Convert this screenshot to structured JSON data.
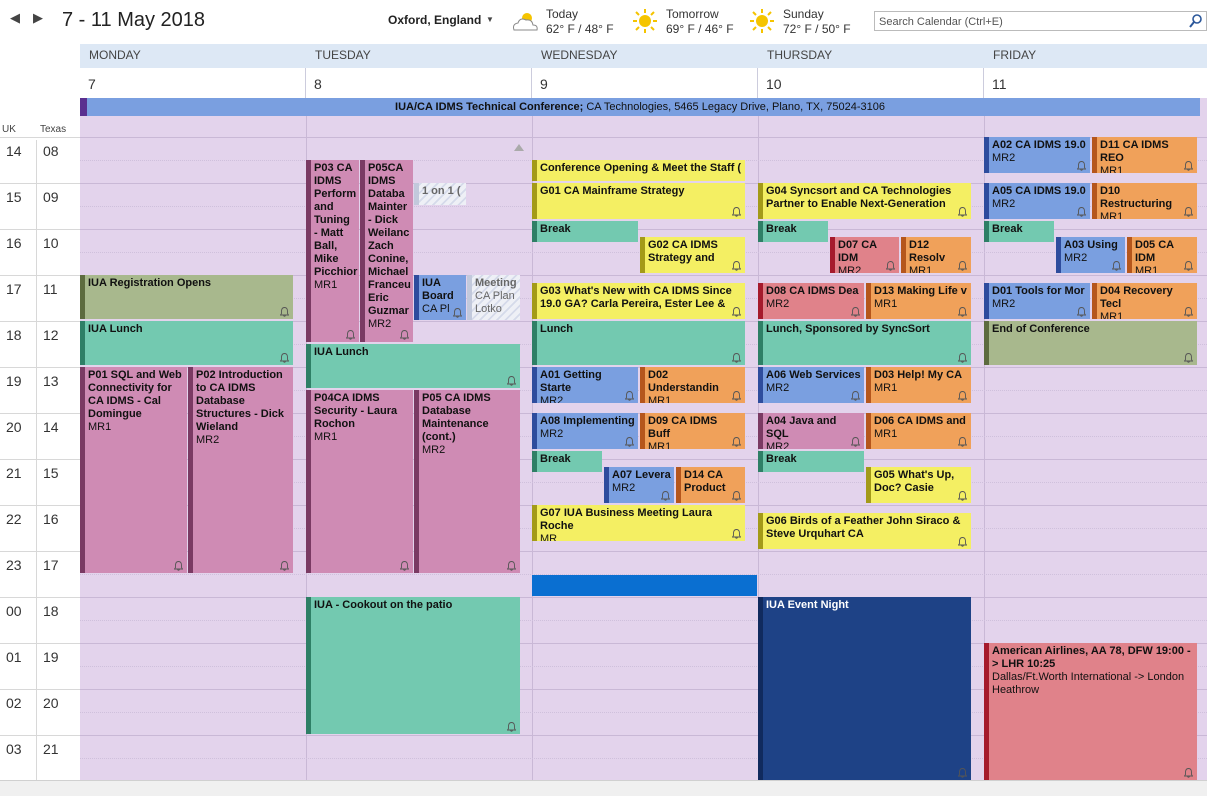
{
  "header": {
    "prev_arrow": "◀",
    "next_arrow": "▶",
    "date_range": "7 - 11 May 2018",
    "location": "Oxford, England",
    "location_caret": "▼",
    "search_placeholder": "Search Calendar (Ctrl+E)"
  },
  "weather": [
    {
      "label": "Today",
      "temp": "62° F / 48° F",
      "icon": "partly-cloudy-icon"
    },
    {
      "label": "Tomorrow",
      "temp": "69° F / 46° F",
      "icon": "sunny-icon"
    },
    {
      "label": "Sunday",
      "temp": "72° F / 50° F",
      "icon": "sunny-icon"
    }
  ],
  "days": [
    {
      "name": "MONDAY",
      "num": "7"
    },
    {
      "name": "TUESDAY",
      "num": "8"
    },
    {
      "name": "WEDNESDAY",
      "num": "9"
    },
    {
      "name": "THURSDAY",
      "num": "10"
    },
    {
      "name": "FRIDAY",
      "num": "11"
    }
  ],
  "timezones": {
    "uk": "UK",
    "texas": "Texas"
  },
  "hours_uk": [
    "14",
    "15",
    "16",
    "17",
    "18",
    "19",
    "20",
    "21",
    "22",
    "23",
    "00",
    "01",
    "02",
    "03"
  ],
  "hours_tx": [
    "08",
    "09",
    "10",
    "11",
    "12",
    "13",
    "14",
    "15",
    "16",
    "17",
    "18",
    "19",
    "20",
    "21"
  ],
  "banner": {
    "title": "IUA/CA IDMS Technical Conference;",
    "location": " CA Technologies, 5465 Legacy Drive, Plano, TX, 75024-3106"
  },
  "events": {
    "mon_reg": {
      "title": "IUA Registration Opens"
    },
    "mon_lunch": {
      "title": "IUA Lunch"
    },
    "mon_p01": {
      "title": "P01 SQL and Web Connectivity for CA IDMS - Cal Domingue",
      "loc": "MR1"
    },
    "mon_p02": {
      "title": "P02 Introduction to CA IDMS Database Structures -  Dick Wieland",
      "loc": "MR2"
    },
    "tue_p03": {
      "title": "P03 CA IDMS Perform and Tuning  -  Matt Ball, Mike Picchior",
      "loc": "MR1"
    },
    "tue_p05": {
      "title": "P05CA IDMS Databa Mainter - Dick Weilanc Zach Conine, Michael Franceu Eric Guzmar",
      "loc": "MR2"
    },
    "tue_1on1": {
      "title": "1 on 1 ("
    },
    "tue_board": {
      "title": "IUA Board",
      "loc": "CA Pl"
    },
    "tue_meeting": {
      "title": "Meeting",
      "loc": "CA Plan Lotko"
    },
    "tue_lunch": {
      "title": "IUA Lunch"
    },
    "tue_p04": {
      "title": "P04CA IDMS Security - Laura Rochon",
      "loc": "MR1"
    },
    "tue_p05b": {
      "title": "P05 CA IDMS Database Maintenance (cont.)",
      "loc": "MR2"
    },
    "tue_cookout": {
      "title": "IUA - Cookout on the patio"
    },
    "wed_opening": {
      "title": "Conference Opening & Meet the Staff ("
    },
    "wed_g01": {
      "title": "G01 CA Mainframe Strategy"
    },
    "wed_break1": {
      "title": "Break"
    },
    "wed_g02": {
      "title": "G02 CA IDMS Strategy and"
    },
    "wed_g03": {
      "title": "G03 What's New with CA IDMS Since 19.0 GA? Carla Pereira, Ester Lee &"
    },
    "wed_lunch": {
      "title": "Lunch"
    },
    "wed_a01": {
      "title": "A01 Getting Starte",
      "loc": "MR2"
    },
    "wed_d02": {
      "title": "D02 Understandin",
      "loc": "MR1"
    },
    "wed_a08": {
      "title": "A08 Implementing",
      "loc": "MR2"
    },
    "wed_d09": {
      "title": "D09 CA IDMS Buff",
      "loc": "MR1"
    },
    "wed_break2": {
      "title": "Break"
    },
    "wed_a07": {
      "title": "A07 Levera",
      "loc": "MR2"
    },
    "wed_d14": {
      "title": "D14 CA Product"
    },
    "wed_g07": {
      "title": "G07 IUA Business Meeting Laura Roche",
      "loc": "MR"
    },
    "thu_g04": {
      "title": "G04 Syncsort and CA Technologies Partner to Enable Next-Generation"
    },
    "thu_break1": {
      "title": "Break"
    },
    "thu_d07": {
      "title": "D07 CA IDM",
      "loc": "MR2"
    },
    "thu_d12": {
      "title": "D12 Resolv",
      "loc": "MR1"
    },
    "thu_d08": {
      "title": "D08 CA IDMS Dea",
      "loc": "MR2"
    },
    "thu_d13": {
      "title": "D13 Making Life v",
      "loc": "MR1"
    },
    "thu_lunch": {
      "title": "Lunch, Sponsored by SyncSort"
    },
    "thu_a06": {
      "title": "A06 Web Services",
      "loc": "MR2"
    },
    "thu_d03": {
      "title": "D03 Help! My CA",
      "loc": "MR1"
    },
    "thu_a04": {
      "title": "A04 Java and SQL",
      "loc": "MR2"
    },
    "thu_d06": {
      "title": "D06 CA IDMS and",
      "loc": "MR1"
    },
    "thu_break2": {
      "title": "Break"
    },
    "thu_g05": {
      "title": "G05 What's Up, Doc? Casie"
    },
    "thu_g06": {
      "title": "G06 Birds of a Feather John Siraco & Steve Urquhart CA"
    },
    "thu_night": {
      "title": "IUA Event Night"
    },
    "fri_a02": {
      "title": "A02 CA IDMS 19.0",
      "loc": "MR2"
    },
    "fri_d11": {
      "title": "D11 CA IDMS REO",
      "loc": "MR1"
    },
    "fri_a05": {
      "title": "A05 CA IDMS 19.0",
      "loc": "MR2"
    },
    "fri_d10": {
      "title": "D10 Restructuring",
      "loc": "MR1"
    },
    "fri_break": {
      "title": "Break"
    },
    "fri_a03": {
      "title": "A03 Using",
      "loc": "MR2"
    },
    "fri_d05": {
      "title": "D05 CA IDM",
      "loc": "MR1"
    },
    "fri_d01": {
      "title": "D01 Tools for Mor",
      "loc": "MR2"
    },
    "fri_d04": {
      "title": "D04 Recovery Tecl",
      "loc": "MR1"
    },
    "fri_end": {
      "title": "End of Conference"
    },
    "fri_aa": {
      "title": "American Airlines, AA 78, DFW 19:00 -> LHR 10:25",
      "loc": "Dallas/Ft.Worth International -> London Heathrow"
    }
  },
  "colors": {
    "pink": "#cf8bb4",
    "green": "#73c9b0",
    "olive": "#a8b88d",
    "yellow": "#f4ef63",
    "blue": "#7a9fe0",
    "orange": "#f0a15a",
    "red": "#e0828a",
    "navy": "#1e4286",
    "grid": "#e3d3ec",
    "header": "#dde8f5"
  }
}
